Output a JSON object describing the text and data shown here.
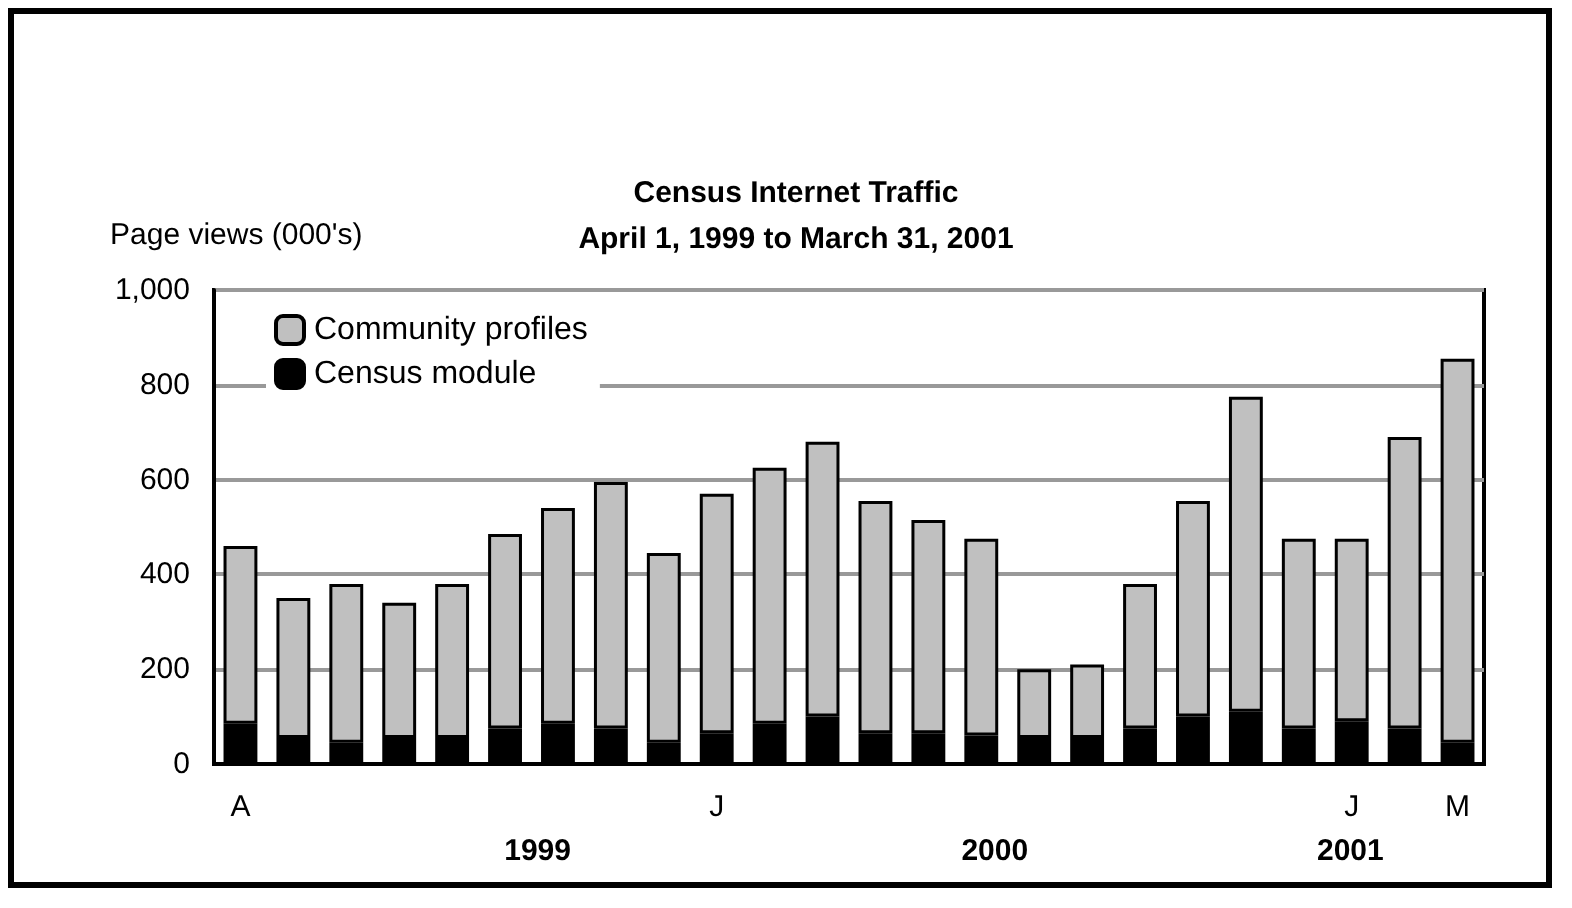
{
  "chart_data": {
    "type": "bar",
    "title": "Census Internet Traffic",
    "subtitle": "April 1, 1999 to March 31, 2001",
    "ylabel": "Page views (000's)",
    "categories": [
      "A",
      null,
      null,
      null,
      null,
      null,
      null,
      null,
      null,
      "J",
      null,
      null,
      null,
      null,
      null,
      null,
      null,
      null,
      null,
      null,
      null,
      "J",
      null,
      "M"
    ],
    "stacked": true,
    "series": [
      {
        "name": "Census module",
        "color": "#000000",
        "values": [
          85,
          55,
          45,
          55,
          55,
          75,
          85,
          75,
          45,
          65,
          85,
          100,
          65,
          65,
          60,
          55,
          55,
          75,
          100,
          110,
          75,
          90,
          75,
          45
        ]
      },
      {
        "name": "Community profiles",
        "color": "#c0c0c0",
        "values": [
          375,
          295,
          335,
          285,
          325,
          410,
          455,
          520,
          400,
          505,
          540,
          580,
          490,
          450,
          415,
          145,
          155,
          305,
          455,
          665,
          400,
          385,
          615,
          810
        ]
      }
    ],
    "ylim": [
      0,
      1000
    ],
    "yticks": [
      0,
      200,
      400,
      600,
      800,
      {
        "value": 1000,
        "label": "1,000"
      }
    ],
    "grid": "y",
    "legend": "top left",
    "annotations": [
      "1999",
      "2000",
      "2001"
    ]
  }
}
